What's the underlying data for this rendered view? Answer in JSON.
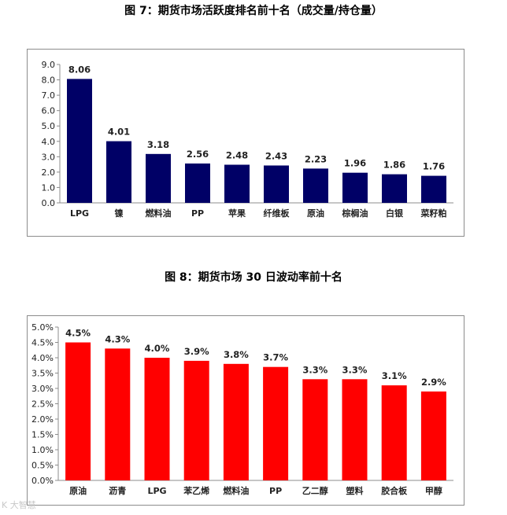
{
  "charts": {
    "chart1": {
      "title": "图 7：期货市场活跃度排名前十名（成交量/持仓量）"
    },
    "chart2": {
      "title": "图 8：期货市场 30 日波动率前十名"
    }
  },
  "watermark": "K 大智慧",
  "chart_data": [
    {
      "type": "bar",
      "title": "图 7：期货市场活跃度排名前十名（成交量/持仓量）",
      "categories": [
        "LPG",
        "镍",
        "燃料油",
        "PP",
        "苹果",
        "纤维板",
        "原油",
        "棕榈油",
        "白银",
        "菜籽粕"
      ],
      "values": [
        8.06,
        4.01,
        3.18,
        2.56,
        2.48,
        2.43,
        2.23,
        1.96,
        1.86,
        1.76
      ],
      "data_labels": [
        "8.06",
        "4.01",
        "3.18",
        "2.56",
        "2.48",
        "2.43",
        "2.23",
        "1.96",
        "1.86",
        "1.76"
      ],
      "yticks": [
        "0.0",
        "1.0",
        "2.0",
        "3.0",
        "4.0",
        "5.0",
        "6.0",
        "7.0",
        "8.0",
        "9.0"
      ],
      "ylim": [
        0,
        9
      ],
      "color": "#000066",
      "grid": false,
      "legend": "none"
    },
    {
      "type": "bar",
      "title": "图 8：期货市场 30 日波动率前十名",
      "categories": [
        "原油",
        "沥青",
        "LPG",
        "苯乙烯",
        "燃料油",
        "PP",
        "乙二醇",
        "塑料",
        "胶合板",
        "甲醇"
      ],
      "values": [
        4.5,
        4.3,
        4.0,
        3.9,
        3.8,
        3.7,
        3.3,
        3.3,
        3.1,
        2.9
      ],
      "data_labels": [
        "4.5%",
        "4.3%",
        "4.0%",
        "3.9%",
        "3.8%",
        "3.7%",
        "3.3%",
        "3.3%",
        "3.1%",
        "2.9%"
      ],
      "yticks": [
        "0.0%",
        "0.5%",
        "1.0%",
        "1.5%",
        "2.0%",
        "2.5%",
        "3.0%",
        "3.5%",
        "4.0%",
        "4.5%",
        "5.0%"
      ],
      "ylim": [
        0,
        5
      ],
      "color": "#ff0000",
      "grid": false,
      "legend": "none"
    }
  ]
}
